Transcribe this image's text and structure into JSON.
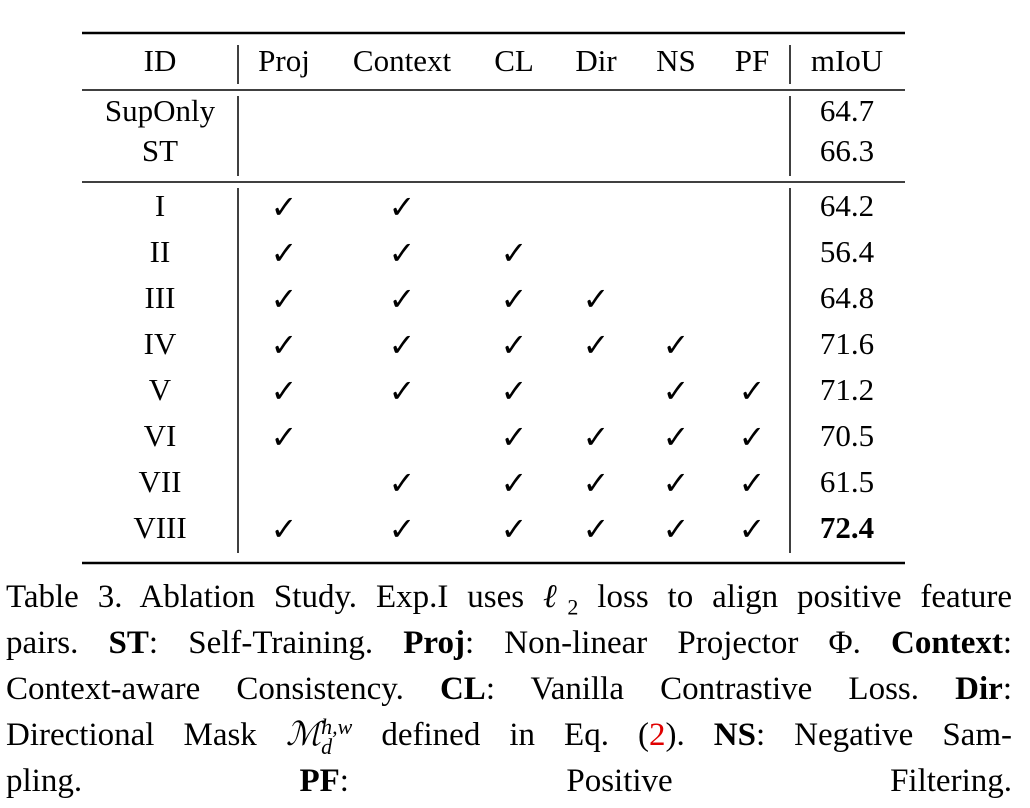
{
  "table": {
    "header": [
      "ID",
      "Proj",
      "Context",
      "CL",
      "Dir",
      "NS",
      "PF",
      "mIoU"
    ],
    "rows": [
      [
        "SupOnly",
        null,
        null,
        null,
        null,
        null,
        null,
        64.7
      ],
      [
        "ST",
        null,
        null,
        null,
        null,
        null,
        null,
        66.3
      ],
      [
        "I",
        "✓",
        "✓",
        null,
        null,
        null,
        null,
        64.2
      ],
      [
        "II",
        "✓",
        "✓",
        "✓",
        null,
        null,
        null,
        56.4
      ],
      [
        "III",
        "✓",
        "✓",
        "✓",
        "✓",
        null,
        null,
        64.8
      ],
      [
        "IV",
        "✓",
        "✓",
        "✓",
        "✓",
        "✓",
        null,
        71.6
      ],
      [
        "V",
        "✓",
        "✓",
        "✓",
        null,
        "✓",
        "✓",
        71.2
      ],
      [
        "VI",
        "✓",
        null,
        "✓",
        "✓",
        "✓",
        "✓",
        70.5
      ],
      [
        "VII",
        null,
        "✓",
        "✓",
        "✓",
        "✓",
        "✓",
        61.5
      ],
      [
        "VIII",
        "✓",
        "✓",
        "✓",
        "✓",
        "✓",
        "✓",
        72.4
      ]
    ]
  },
  "caption": [
    [
      "Table 3. Ablation Study. Exp.I uses ",
      "ℓ",
      "2",
      " loss to align positive feature"
    ],
    [
      "pairs. ",
      "ST",
      ": Self-Training. ",
      "Proj",
      ": Non-linear Projector Φ. ",
      "Context",
      ":"
    ],
    [
      "Context-aware Consistency. ",
      "CL",
      ": Vanilla Contrastive Loss. ",
      "Dir",
      ":"
    ],
    [
      "Directional Mask ",
      "ℳ",
      "h,w",
      "d",
      " defined in Eq. (",
      "2",
      "). ",
      "NS",
      ": Negative Sam-"
    ],
    [
      "pling. ",
      "PF",
      ": Positive Filtering."
    ]
  ]
}
